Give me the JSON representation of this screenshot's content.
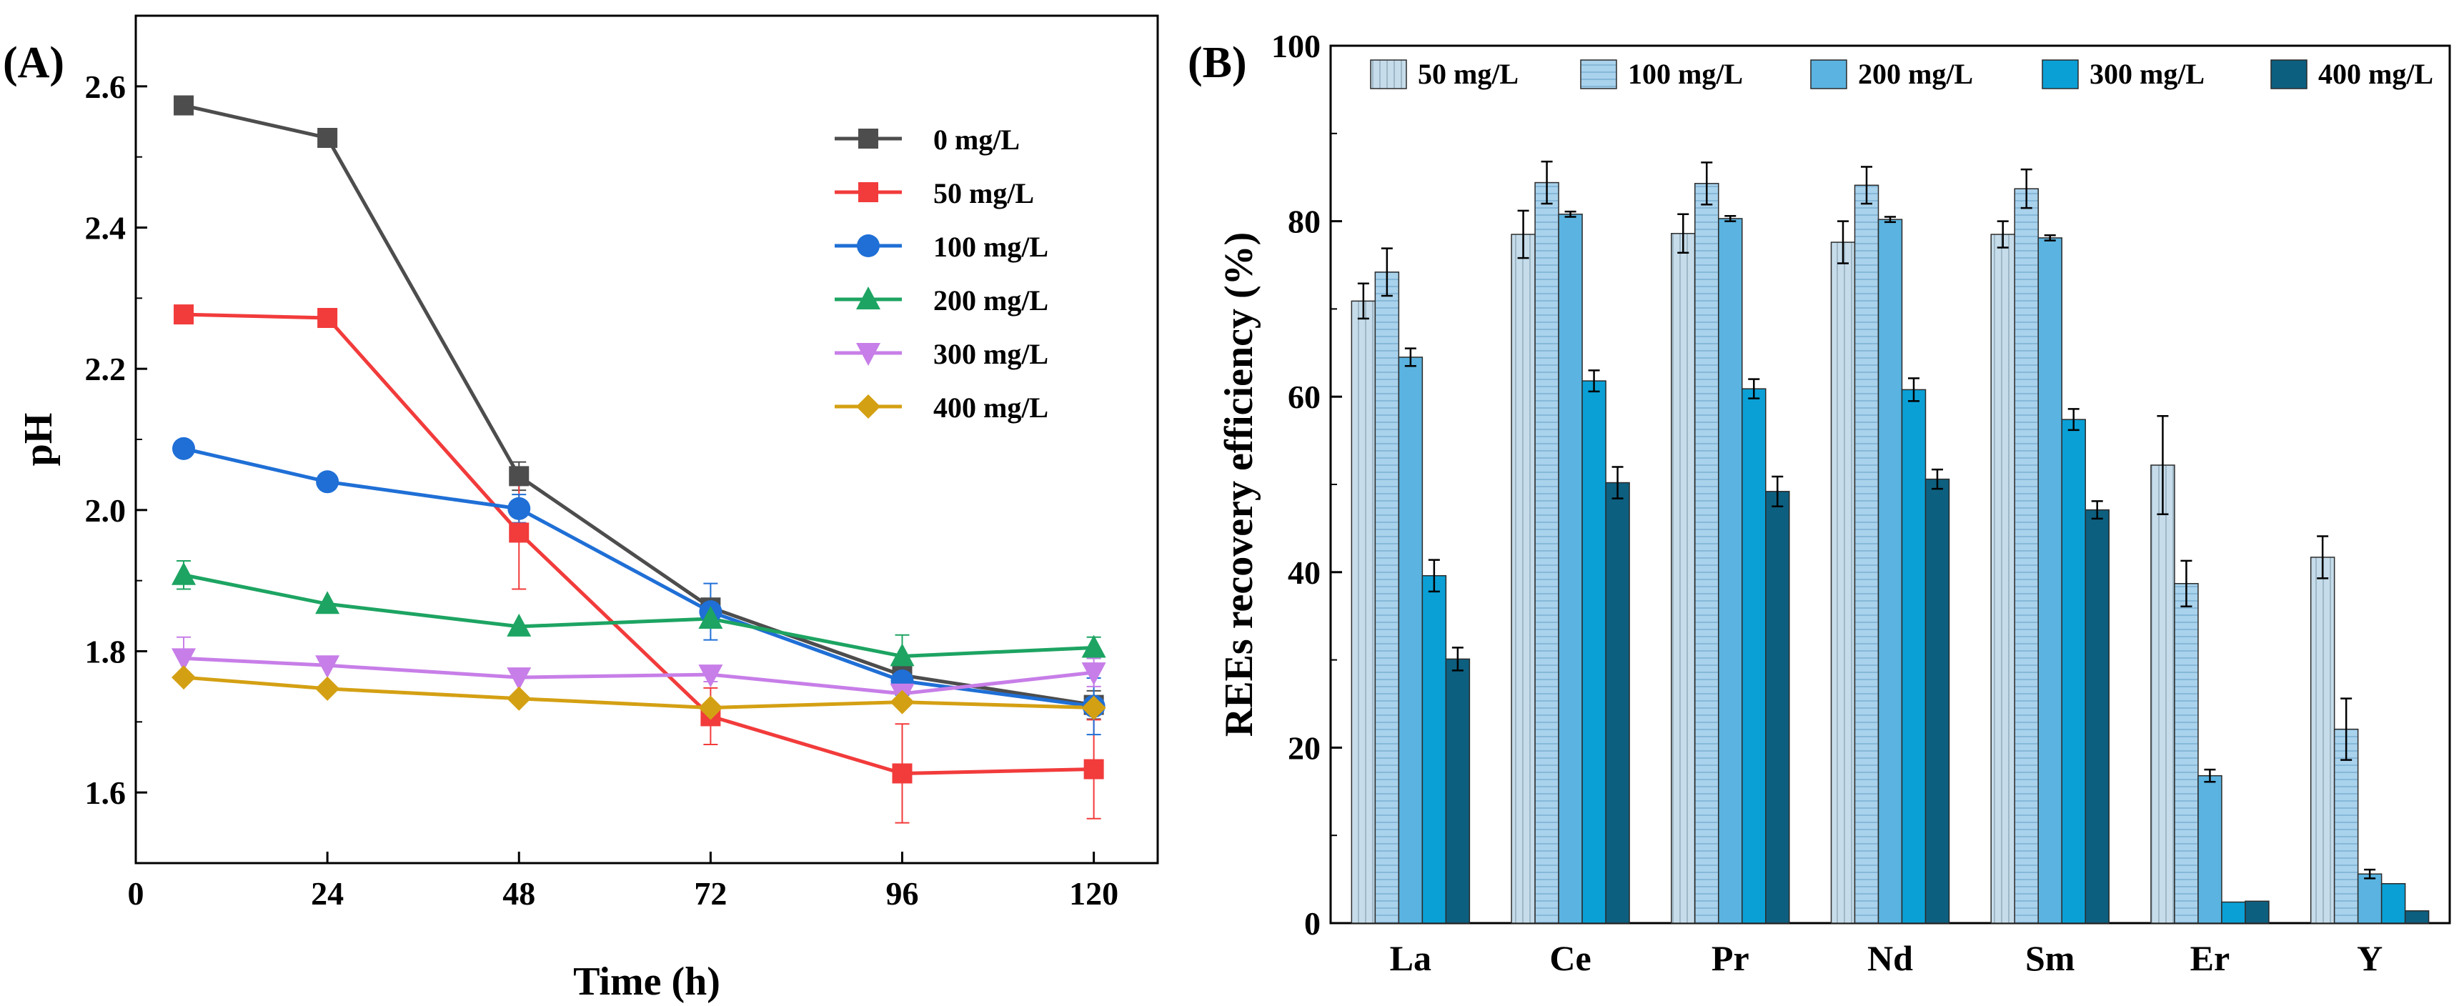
{
  "chart_data": [
    {
      "panel": "(A)",
      "type": "line",
      "title": "",
      "xlabel": "Time (h)",
      "ylabel": "pH",
      "xlim": [
        0,
        128
      ],
      "ylim": [
        1.5,
        2.7
      ],
      "xticks": [
        0,
        24,
        48,
        72,
        96,
        120
      ],
      "yticks": [
        1.6,
        1.8,
        2.0,
        2.2,
        2.4,
        2.6
      ],
      "ytick_labels": [
        "1.6",
        "1.8",
        "2.0",
        "2.2",
        "2.4",
        "2.6"
      ],
      "legend_position": "top-right",
      "x": [
        6,
        24,
        48,
        72,
        96,
        120
      ],
      "series": [
        {
          "name": "0 mg/L",
          "color": "#4d4d4d",
          "marker": "square",
          "values": [
            2.573,
            2.527,
            2.048,
            1.862,
            1.766,
            1.724
          ],
          "errors": [
            0,
            0,
            0.02,
            0.01,
            0.01,
            0.02
          ]
        },
        {
          "name": "50 mg/L",
          "color": "#f23b3b",
          "marker": "square",
          "values": [
            2.277,
            2.272,
            1.968,
            1.708,
            1.627,
            1.633
          ],
          "errors": [
            0,
            0,
            0.08,
            0.04,
            0.07,
            0.07
          ]
        },
        {
          "name": "100 mg/L",
          "color": "#1f6fd6",
          "marker": "circle",
          "values": [
            2.087,
            2.04,
            2.002,
            1.856,
            1.758,
            1.722
          ],
          "errors": [
            0,
            0,
            0.02,
            0.04,
            0.02,
            0.04
          ]
        },
        {
          "name": "200 mg/L",
          "color": "#1da462",
          "marker": "triangle-up",
          "values": [
            1.908,
            1.867,
            1.835,
            1.846,
            1.793,
            1.805
          ],
          "errors": [
            0.02,
            0,
            0,
            0.01,
            0.03,
            0.015
          ]
        },
        {
          "name": "300 mg/L",
          "color": "#c77ee8",
          "marker": "triangle-down",
          "values": [
            1.79,
            1.78,
            1.763,
            1.767,
            1.74,
            1.77
          ],
          "errors": [
            0.03,
            0,
            0,
            0.01,
            0,
            0.02
          ]
        },
        {
          "name": "400 mg/L",
          "color": "#d4a013",
          "marker": "diamond",
          "values": [
            1.763,
            1.747,
            1.733,
            1.72,
            1.728,
            1.72
          ],
          "errors": [
            0,
            0,
            0,
            0,
            0,
            0
          ]
        }
      ]
    },
    {
      "panel": "(B)",
      "type": "bar",
      "title": "",
      "xlabel": "",
      "ylabel": "REEs recovery efficiency (%)",
      "ylim": [
        0,
        100
      ],
      "yticks": [
        0,
        20,
        40,
        60,
        80,
        100
      ],
      "legend_position": "top",
      "categories": [
        "La",
        "Ce",
        "Pr",
        "Nd",
        "Sm",
        "Er",
        "Y"
      ],
      "series": [
        {
          "name": "50 mg/L",
          "color": "#c6dcea",
          "values": [
            70.9,
            78.5,
            78.6,
            77.6,
            78.5,
            52.2,
            41.7
          ],
          "errors": [
            2.0,
            2.7,
            2.2,
            2.4,
            1.5,
            5.6,
            2.4
          ]
        },
        {
          "name": "100 mg/L",
          "color": "#a9d2ec",
          "values": [
            74.2,
            84.4,
            84.3,
            84.1,
            83.7,
            38.7,
            22.1
          ],
          "errors": [
            2.7,
            2.4,
            2.4,
            2.1,
            2.2,
            2.6,
            3.5
          ]
        },
        {
          "name": "200 mg/L",
          "color": "#5ab3e0",
          "values": [
            64.5,
            80.8,
            80.3,
            80.2,
            78.1,
            16.8,
            5.6
          ],
          "errors": [
            1.0,
            0.3,
            0.3,
            0.3,
            0.3,
            0.7,
            0.5
          ]
        },
        {
          "name": "300 mg/L",
          "color": "#0aa0d6",
          "values": [
            39.6,
            61.8,
            60.9,
            60.8,
            57.4,
            2.4,
            4.5
          ],
          "errors": [
            1.8,
            1.2,
            1.1,
            1.3,
            1.2,
            0,
            0
          ]
        },
        {
          "name": "400 mg/L",
          "color": "#0d5f7f",
          "values": [
            30.1,
            50.2,
            49.2,
            50.6,
            47.1,
            2.5,
            1.4
          ],
          "errors": [
            1.3,
            1.8,
            1.7,
            1.1,
            1.0,
            0,
            0
          ]
        }
      ]
    }
  ]
}
